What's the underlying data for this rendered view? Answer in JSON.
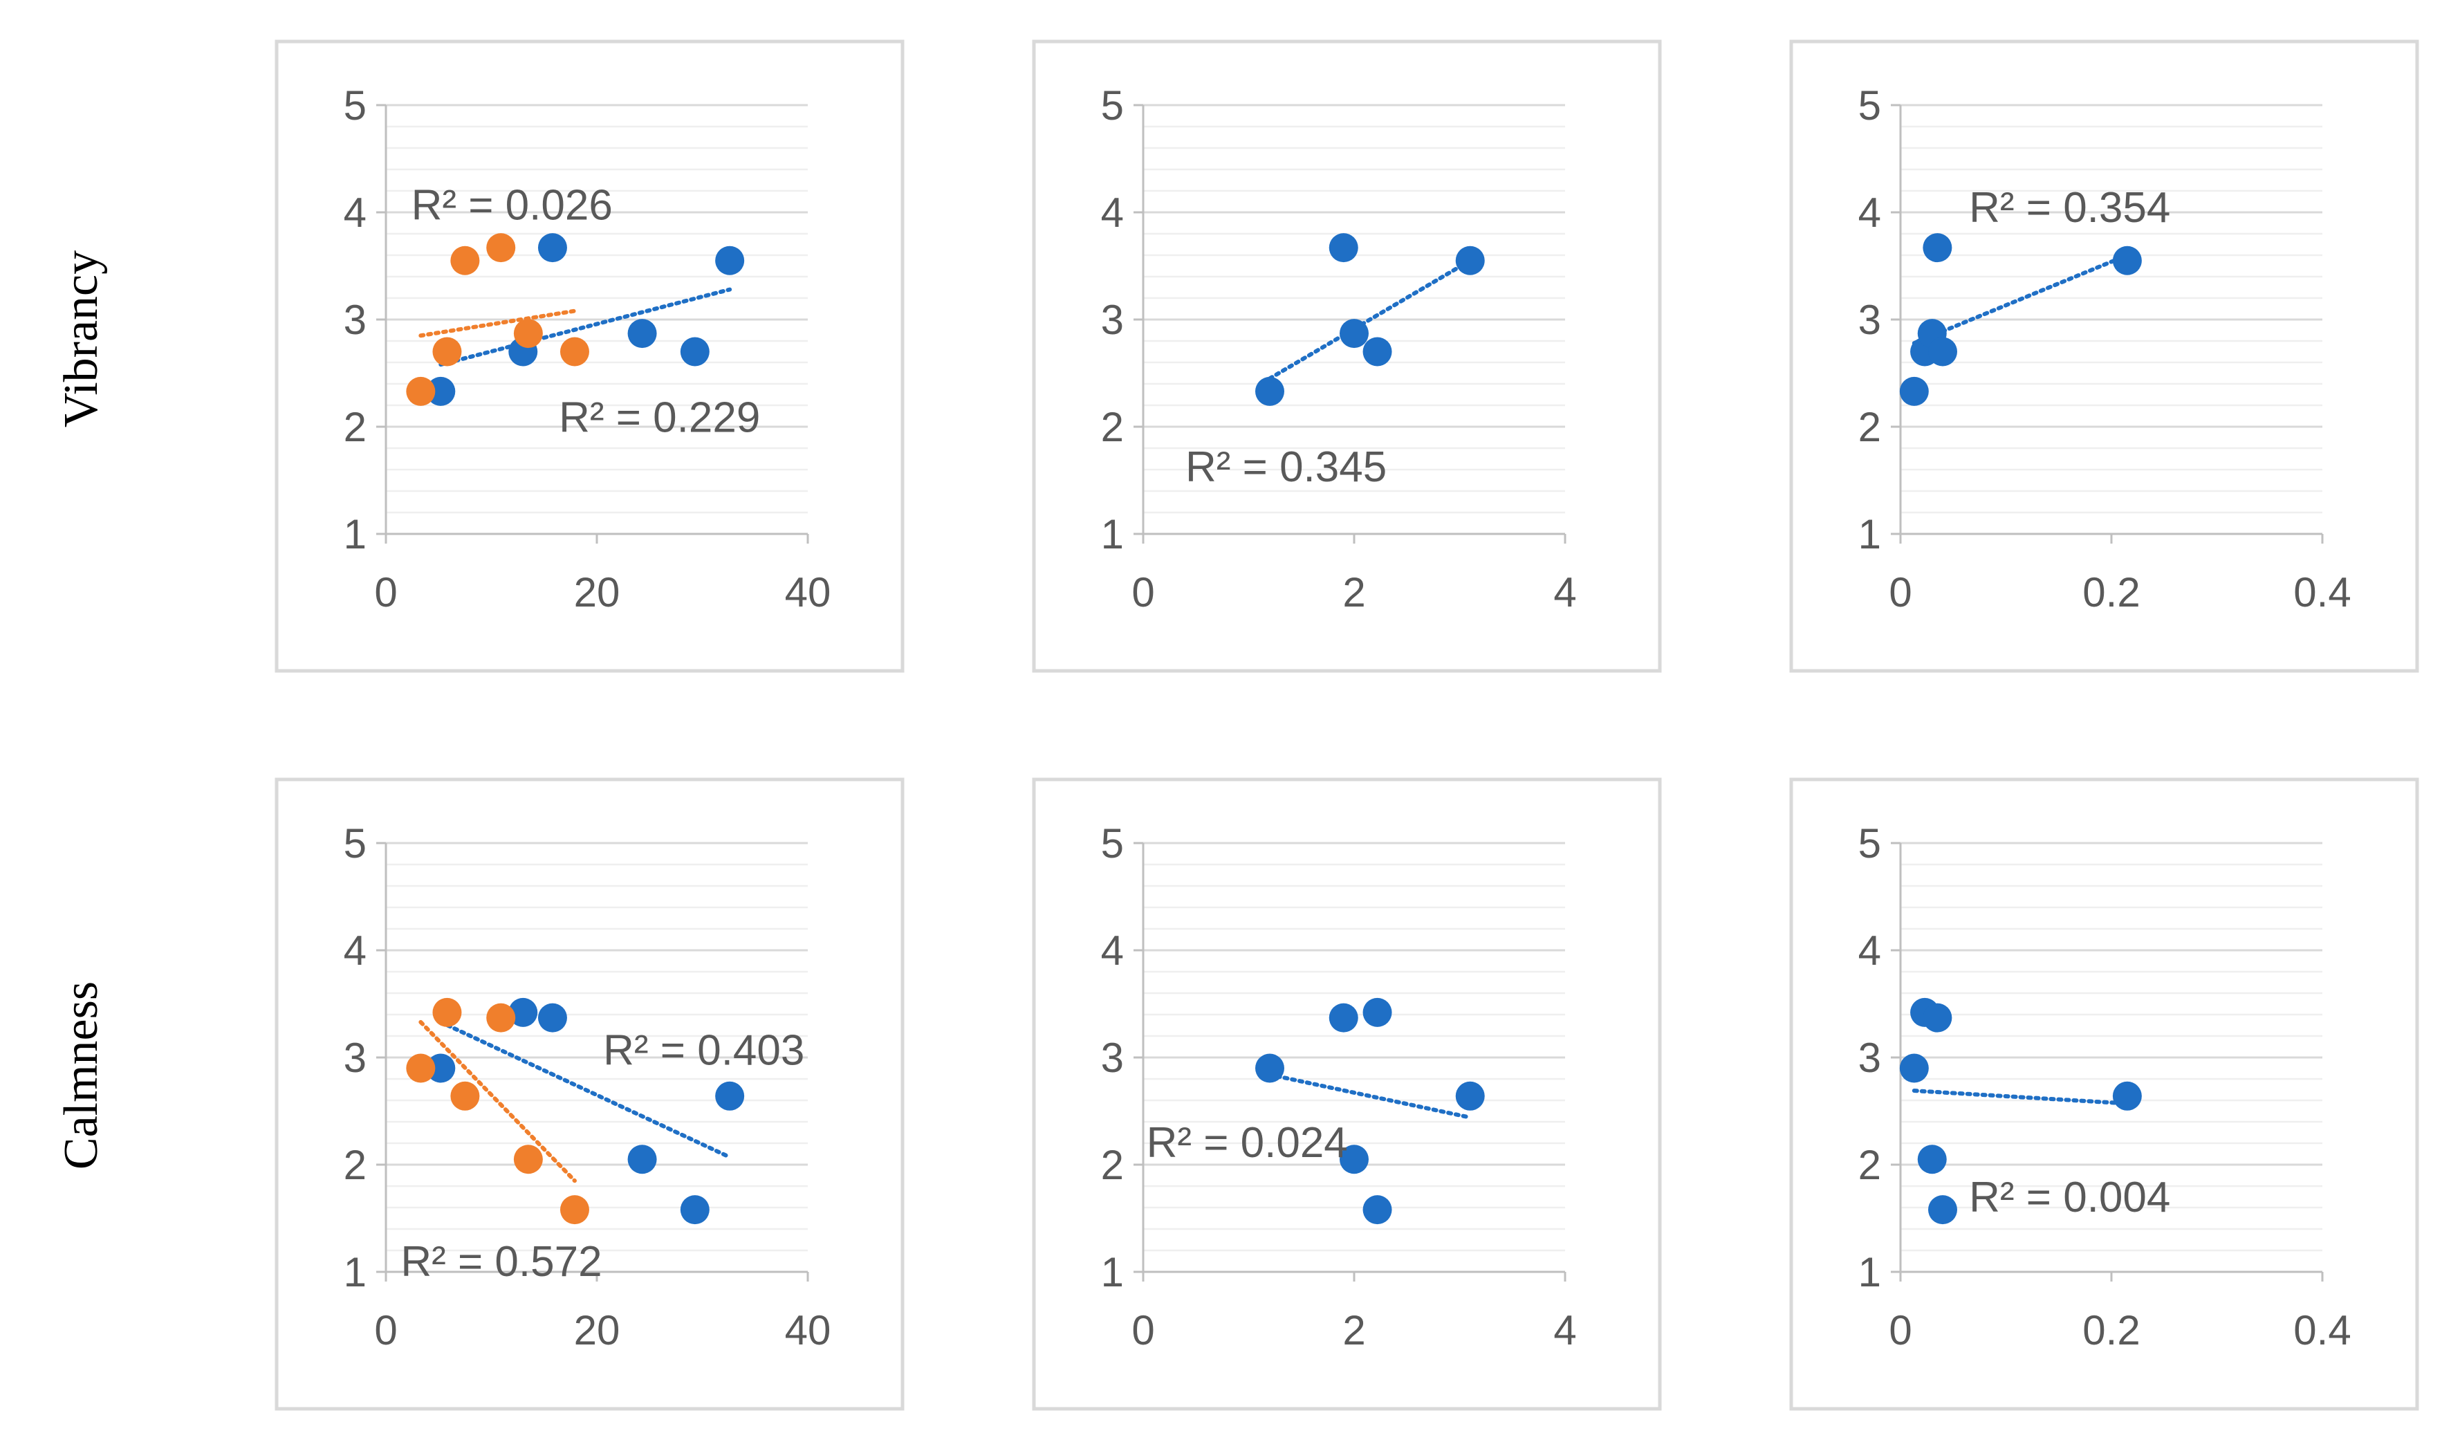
{
  "colors": {
    "series_blue": "#1f6fc5",
    "series_orange": "#f07f2c",
    "text": "#595959"
  },
  "row_labels": [
    "Vibrancy",
    "Calmness"
  ],
  "chart_data": [
    {
      "id": "vib-1",
      "type": "scatter",
      "row": 0,
      "col": 0,
      "xlim": [
        0,
        40
      ],
      "ylim": [
        1,
        5
      ],
      "xticks": [
        0,
        20,
        40
      ],
      "xtick_labels": [
        "0",
        "20",
        "40"
      ],
      "yticks": [
        1,
        2,
        3,
        4,
        5
      ],
      "ytick_labels": [
        "1",
        "2",
        "3",
        "4",
        "5"
      ],
      "series": [
        {
          "name": "blue",
          "color": "#1f6fc5",
          "x": [
            5.2,
            13.0,
            15.8,
            24.3,
            29.3,
            32.6
          ],
          "y": [
            2.33,
            2.7,
            3.67,
            2.87,
            2.7,
            3.55
          ],
          "trend": {
            "x": [
              5.2,
              32.6
            ],
            "y": [
              2.58,
              3.28
            ]
          }
        },
        {
          "name": "orange",
          "color": "#f07f2c",
          "x": [
            3.3,
            5.8,
            7.5,
            10.9,
            13.5,
            17.9
          ],
          "y": [
            2.33,
            2.7,
            3.55,
            3.67,
            2.87,
            2.7
          ],
          "trend": {
            "x": [
              3.3,
              17.9
            ],
            "y": [
              2.85,
              3.08
            ]
          }
        }
      ],
      "annotations": [
        {
          "text": "R² = 0.026",
          "series": "orange",
          "x": 2.4,
          "y": 4.06
        },
        {
          "text": "R² = 0.229",
          "series": "blue",
          "x": 16.4,
          "y": 2.08
        }
      ]
    },
    {
      "id": "vib-2",
      "type": "scatter",
      "row": 0,
      "col": 1,
      "xlim": [
        0,
        4
      ],
      "ylim": [
        1,
        5
      ],
      "xticks": [
        0,
        2,
        4
      ],
      "xtick_labels": [
        "0",
        "2",
        "4"
      ],
      "yticks": [
        1,
        2,
        3,
        4,
        5
      ],
      "ytick_labels": [
        "1",
        "2",
        "3",
        "4",
        "5"
      ],
      "series": [
        {
          "name": "blue",
          "color": "#1f6fc5",
          "x": [
            1.2,
            1.9,
            2.0,
            2.22,
            3.1
          ],
          "y": [
            2.33,
            3.67,
            2.87,
            2.7,
            3.55
          ],
          "trend": {
            "x": [
              1.2,
              3.1
            ],
            "y": [
              2.45,
              3.55
            ]
          }
        }
      ],
      "annotations": [
        {
          "text": "R² = 0.345",
          "series": "blue",
          "x": 0.4,
          "y": 1.62
        }
      ]
    },
    {
      "id": "vib-3",
      "type": "scatter",
      "row": 0,
      "col": 2,
      "xlim": [
        0,
        0.4
      ],
      "ylim": [
        1,
        5
      ],
      "xticks": [
        0,
        0.2,
        0.4
      ],
      "xtick_labels": [
        "0",
        "0.2",
        "0.4"
      ],
      "yticks": [
        1,
        2,
        3,
        4,
        5
      ],
      "ytick_labels": [
        "1",
        "2",
        "3",
        "4",
        "5"
      ],
      "series": [
        {
          "name": "blue",
          "color": "#1f6fc5",
          "x": [
            0.013,
            0.023,
            0.03,
            0.035,
            0.04,
            0.215
          ],
          "y": [
            2.33,
            2.7,
            2.87,
            3.67,
            2.7,
            3.55
          ],
          "trend": {
            "x": [
              0.013,
              0.215
            ],
            "y": [
              2.78,
              3.6
            ]
          }
        }
      ],
      "annotations": [
        {
          "text": "R² = 0.354",
          "series": "blue",
          "x": 0.065,
          "y": 4.04
        }
      ]
    },
    {
      "id": "calm-1",
      "type": "scatter",
      "row": 1,
      "col": 0,
      "xlim": [
        0,
        40
      ],
      "ylim": [
        1,
        5
      ],
      "xticks": [
        0,
        20,
        40
      ],
      "xtick_labels": [
        "0",
        "20",
        "40"
      ],
      "yticks": [
        1,
        2,
        3,
        4,
        5
      ],
      "ytick_labels": [
        "1",
        "2",
        "3",
        "4",
        "5"
      ],
      "series": [
        {
          "name": "blue",
          "color": "#1f6fc5",
          "x": [
            5.2,
            13.0,
            15.8,
            24.3,
            29.3,
            32.6
          ],
          "y": [
            2.9,
            3.42,
            3.37,
            2.05,
            1.58,
            2.64
          ],
          "trend": {
            "x": [
              5.2,
              32.6
            ],
            "y": [
              3.33,
              2.07
            ]
          }
        },
        {
          "name": "orange",
          "color": "#f07f2c",
          "x": [
            3.3,
            5.8,
            7.5,
            10.9,
            13.5,
            17.9
          ],
          "y": [
            2.9,
            3.42,
            2.64,
            3.37,
            2.05,
            1.58
          ],
          "trend": {
            "x": [
              3.3,
              17.9
            ],
            "y": [
              3.33,
              1.85
            ]
          }
        }
      ],
      "annotations": [
        {
          "text": "R² = 0.403",
          "series": "blue",
          "x": 20.6,
          "y": 3.06
        },
        {
          "text": "R² = 0.572",
          "series": "orange",
          "x": 1.4,
          "y": 1.09
        }
      ]
    },
    {
      "id": "calm-2",
      "type": "scatter",
      "row": 1,
      "col": 1,
      "xlim": [
        0,
        4
      ],
      "ylim": [
        1,
        5
      ],
      "xticks": [
        0,
        2,
        4
      ],
      "xtick_labels": [
        "0",
        "2",
        "4"
      ],
      "yticks": [
        1,
        2,
        3,
        4,
        5
      ],
      "ytick_labels": [
        "1",
        "2",
        "3",
        "4",
        "5"
      ],
      "series": [
        {
          "name": "blue",
          "color": "#1f6fc5",
          "x": [
            1.2,
            1.9,
            2.0,
            2.22,
            2.22,
            3.1
          ],
          "y": [
            2.9,
            3.37,
            2.05,
            1.58,
            3.42,
            2.64
          ],
          "trend": {
            "x": [
              1.2,
              3.1
            ],
            "y": [
              2.84,
              2.44
            ]
          }
        }
      ],
      "annotations": [
        {
          "text": "R² = 0.024",
          "series": "blue",
          "x": 0.03,
          "y": 2.2
        }
      ]
    },
    {
      "id": "calm-3",
      "type": "scatter",
      "row": 1,
      "col": 2,
      "xlim": [
        0,
        0.4
      ],
      "ylim": [
        1,
        5
      ],
      "xticks": [
        0,
        0.2,
        0.4
      ],
      "xtick_labels": [
        "0",
        "0.2",
        "0.4"
      ],
      "yticks": [
        1,
        2,
        3,
        4,
        5
      ],
      "ytick_labels": [
        "1",
        "2",
        "3",
        "4",
        "5"
      ],
      "series": [
        {
          "name": "blue",
          "color": "#1f6fc5",
          "x": [
            0.013,
            0.023,
            0.03,
            0.035,
            0.04,
            0.215
          ],
          "y": [
            2.9,
            3.42,
            2.05,
            3.37,
            1.58,
            2.64
          ],
          "trend": {
            "x": [
              0.013,
              0.215
            ],
            "y": [
              2.69,
              2.57
            ]
          }
        }
      ],
      "annotations": [
        {
          "text": "R² = 0.004",
          "series": "blue",
          "x": 0.065,
          "y": 1.69
        }
      ]
    }
  ]
}
